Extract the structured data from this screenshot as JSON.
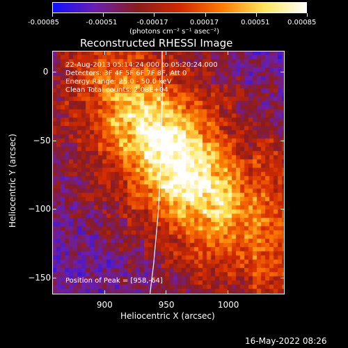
{
  "colorbar": {
    "tick_labels": [
      "-0.00085",
      "-0.00051",
      "-0.00017",
      "0.00017",
      "0.00051",
      "0.00085"
    ],
    "unit_label": "(photons cm⁻² s⁻¹ asec⁻²)",
    "range": [
      -0.00085,
      0.00085
    ],
    "colors": [
      "#1010ff",
      "#6a1fb0",
      "#8b1c1c",
      "#d12a00",
      "#ff7a00",
      "#ffe65a",
      "#ffffff"
    ]
  },
  "chart_data": {
    "type": "heatmap",
    "title": "Reconstructed RHESSI Image",
    "xlabel": "Heliocentric X (arcsec)",
    "ylabel": "Heliocentric Y (arcsec)",
    "xlim": [
      858,
      1046
    ],
    "ylim": [
      -162,
      15
    ],
    "x_ticks": [
      900,
      950,
      1000
    ],
    "x_tick_labels": [
      "900",
      "950",
      "1000"
    ],
    "y_ticks": [
      0,
      -50,
      -100,
      -150
    ],
    "y_tick_labels": [
      "0",
      "−50",
      "−100",
      "−150"
    ],
    "peak": {
      "x": 958,
      "y": -64
    },
    "limb_curve": [
      [
        947,
        15
      ],
      [
        947,
        -20
      ],
      [
        946,
        -60
      ],
      [
        944,
        -100
      ],
      [
        940,
        -140
      ],
      [
        937,
        -162
      ]
    ],
    "annotations": {
      "time": "22-Aug-2013 05:14:24.000 to 05:20:24.000",
      "detectors": "Detectors: 3F 4F 5F 6F 7F 8F, Att 0",
      "energy": "Energy Range: 25.0 - 50.0 keV",
      "method": "Clean     Total counts: 2.08E+04",
      "peak_text": "Position of Peak = [958,-64]"
    }
  },
  "footer": {
    "date": "16-May-2022 08:26"
  }
}
